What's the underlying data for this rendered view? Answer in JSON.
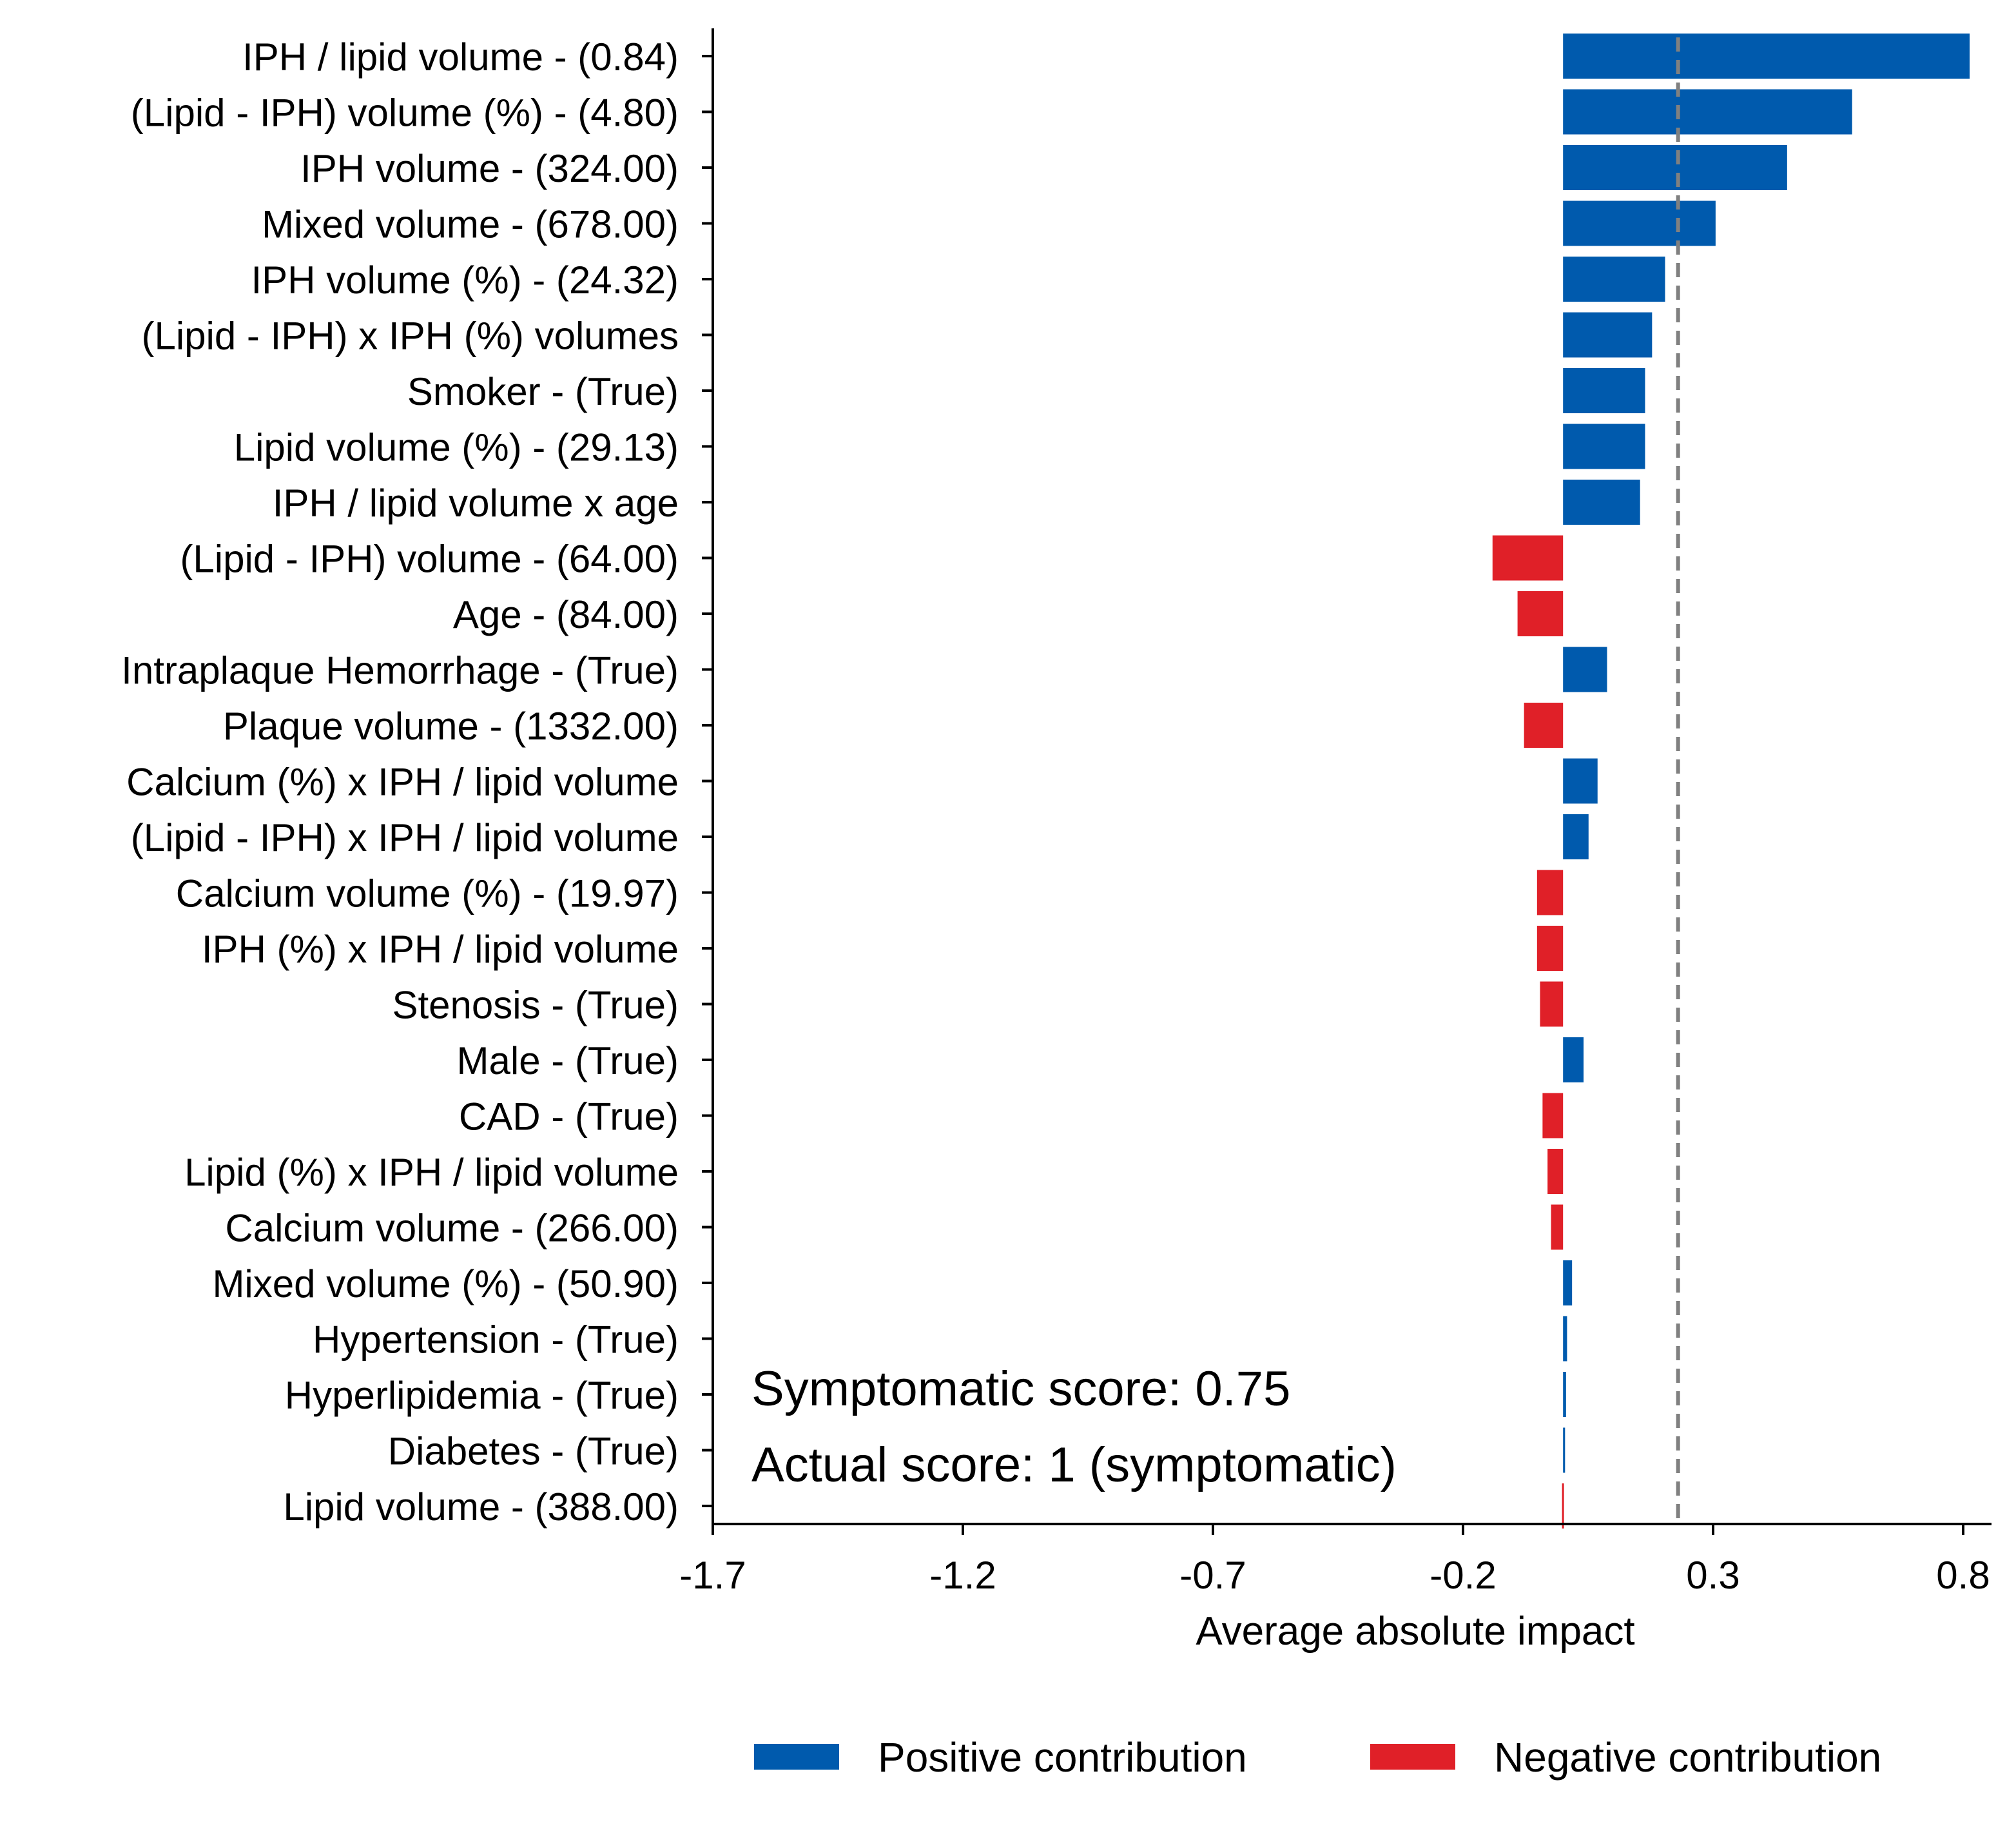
{
  "chart_data": {
    "type": "bar",
    "orientation": "horizontal",
    "xlabel": "Average absolute impact",
    "xlim": [
      -1.7,
      0.85
    ],
    "xticks": [
      "-1.7",
      "-1.2",
      "-0.7",
      "-0.2",
      "0.3",
      "0.8"
    ],
    "reference_line": {
      "x": 0.23,
      "style": "dashed",
      "color": "#808080"
    },
    "categories": [
      "IPH / lipid volume - (0.84)",
      "(Lipid - IPH) volume (%) - (4.80)",
      "IPH volume - (324.00)",
      "Mixed volume - (678.00)",
      "IPH volume (%) - (24.32)",
      "(Lipid - IPH) x IPH (%) volumes",
      "Smoker - (True)",
      "Lipid volume (%) - (29.13)",
      "IPH / lipid volume x age",
      "(Lipid - IPH) volume - (64.00)",
      "Age - (84.00)",
      "Intraplaque Hemorrhage - (True)",
      "Plaque volume - (1332.00)",
      "Calcium (%) x IPH / lipid volume",
      "(Lipid - IPH) x IPH / lipid volume",
      "Calcium volume (%) - (19.97)",
      "IPH (%) x IPH / lipid volume",
      "Stenosis - (True)",
      "Male - (True)",
      "CAD - (True)",
      "Lipid (%) x IPH / lipid volume",
      "Calcium volume - (266.00)",
      "Mixed volume (%) - (50.90)",
      "Hypertension - (True)",
      "Hyperlipidemia - (True)",
      "Diabetes - (True)",
      "Lipid volume - (388.00)"
    ],
    "values": [
      0.813,
      0.578,
      0.448,
      0.305,
      0.204,
      0.178,
      0.164,
      0.164,
      0.154,
      -0.141,
      -0.091,
      0.088,
      -0.078,
      0.069,
      0.051,
      -0.052,
      -0.052,
      -0.046,
      0.041,
      -0.041,
      -0.031,
      -0.024,
      0.018,
      0.008,
      0.006,
      0.004,
      -0.002
    ],
    "colors": {
      "positive": "#005aad",
      "negative": "#e02028"
    },
    "legend": {
      "placement": "bottom",
      "entries": [
        {
          "label": "Positive contribution",
          "color": "#005aad"
        },
        {
          "label": "Negative contribution",
          "color": "#e02028"
        }
      ]
    },
    "annotations": [
      "Symptomatic score: 0.75",
      "Actual score: 1 (symptomatic)"
    ]
  }
}
